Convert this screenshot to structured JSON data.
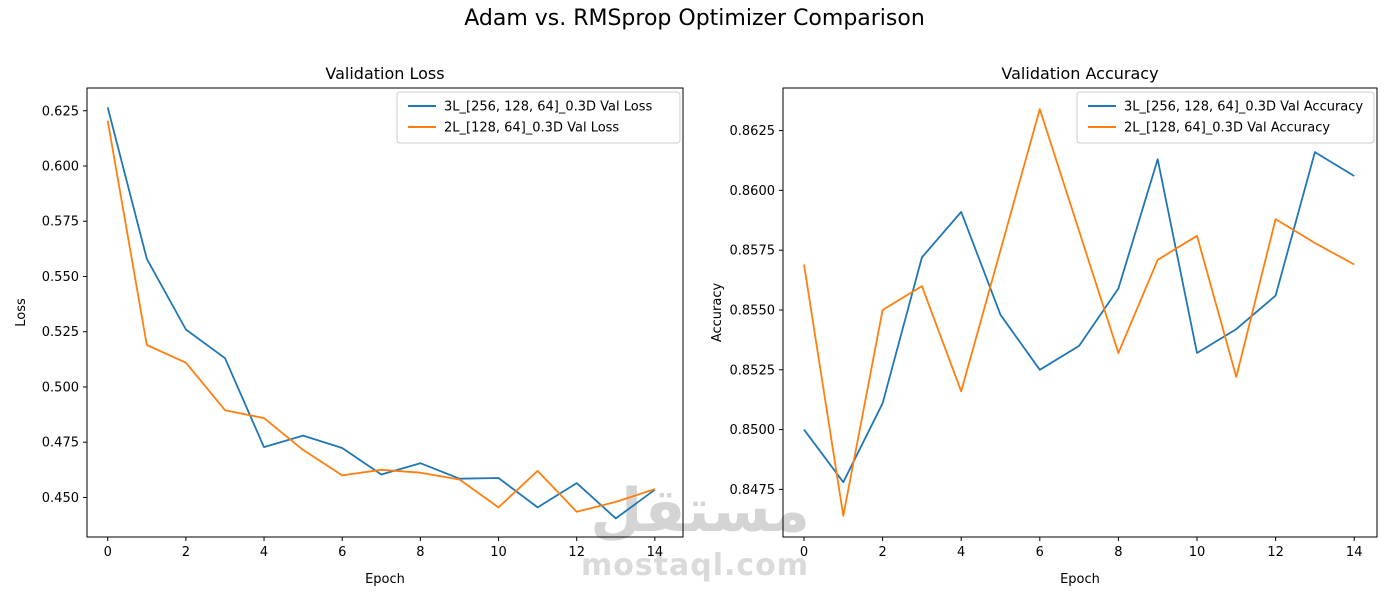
{
  "page_title": "Adam vs. RMSprop Optimizer Comparison",
  "watermark": {
    "arabic": "مستقل",
    "latin": "mostaql.com"
  },
  "colors": {
    "series_blue": "#1f77b4",
    "series_orange": "#ff7f0e",
    "legend_border": "#cccccc",
    "axis": "#000000"
  },
  "chart_data": [
    {
      "type": "line",
      "title": "Validation Loss",
      "xlabel": "Epoch",
      "ylabel": "Loss",
      "x": [
        0,
        1,
        2,
        3,
        4,
        5,
        6,
        7,
        8,
        9,
        10,
        11,
        12,
        13,
        14
      ],
      "series": [
        {
          "name": "3L_[256, 128, 64]_0.3D Val Loss",
          "color": "#1f77b4",
          "values": [
            0.6265,
            0.558,
            0.526,
            0.513,
            0.4728,
            0.478,
            0.4724,
            0.4604,
            0.4655,
            0.4585,
            0.4588,
            0.4455,
            0.4565,
            0.4405,
            0.4535
          ]
        },
        {
          "name": "2L_[128, 64]_0.3D Val Loss",
          "color": "#ff7f0e",
          "values": [
            0.6205,
            0.519,
            0.511,
            0.4895,
            0.4859,
            0.4715,
            0.46,
            0.4625,
            0.4612,
            0.4581,
            0.4455,
            0.462,
            0.4435,
            0.448,
            0.4538
          ]
        }
      ],
      "xlim": [
        -0.53,
        14.72
      ],
      "ylim": [
        0.4321,
        0.6353
      ],
      "xticks": [
        0,
        2,
        4,
        6,
        8,
        10,
        12,
        14
      ],
      "yticks": [
        0.45,
        0.475,
        0.5,
        0.525,
        0.55,
        0.575,
        0.6,
        0.625
      ],
      "ytick_decimals": 3,
      "grid": false,
      "legend_position": "upper right"
    },
    {
      "type": "line",
      "title": "Validation Accuracy",
      "xlabel": "Epoch",
      "ylabel": "Accuracy",
      "x": [
        0,
        1,
        2,
        3,
        4,
        5,
        6,
        7,
        8,
        9,
        10,
        11,
        12,
        13,
        14
      ],
      "series": [
        {
          "name": "3L_[256, 128, 64]_0.3D Val Accuracy",
          "color": "#1f77b4",
          "values": [
            0.85,
            0.8478,
            0.8511,
            0.8572,
            0.8591,
            0.8548,
            0.8525,
            0.8535,
            0.8559,
            0.8613,
            0.8532,
            0.8542,
            0.8556,
            0.8616,
            0.8606
          ]
        },
        {
          "name": "2L_[128, 64]_0.3D Val Accuracy",
          "color": "#ff7f0e",
          "values": [
            0.8569,
            0.8464,
            0.855,
            0.856,
            0.8516,
            0.8575,
            0.8634,
            0.8583,
            0.8532,
            0.8571,
            0.8581,
            0.8522,
            0.8588,
            0.8578,
            0.8569
          ]
        }
      ],
      "xlim": [
        -0.534,
        14.58
      ],
      "ylim": [
        0.84551,
        0.86428
      ],
      "xticks": [
        0,
        2,
        4,
        6,
        8,
        10,
        12,
        14
      ],
      "yticks": [
        0.8475,
        0.85,
        0.8525,
        0.855,
        0.8575,
        0.86,
        0.8625
      ],
      "ytick_decimals": 4,
      "grid": false,
      "legend_position": "upper right"
    }
  ]
}
